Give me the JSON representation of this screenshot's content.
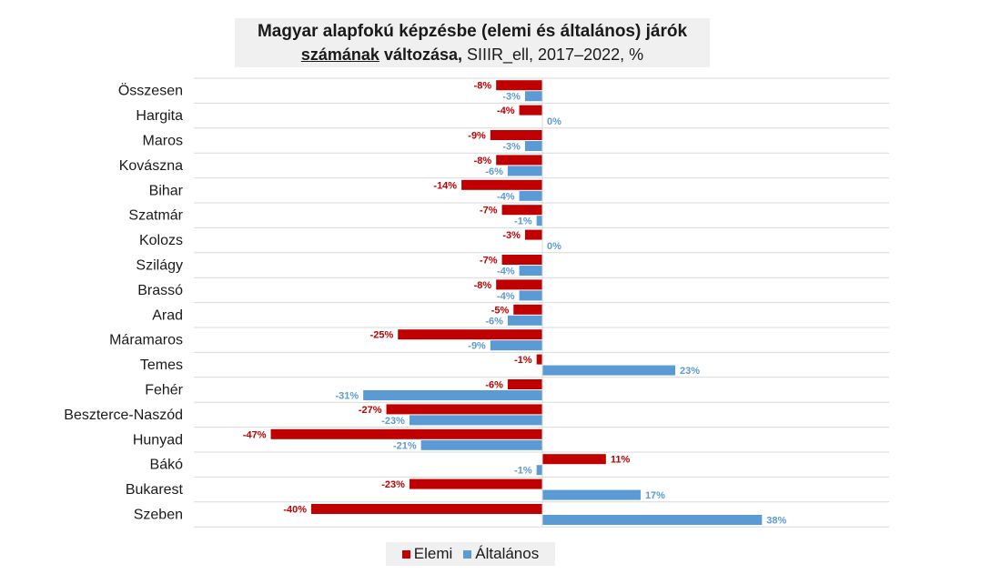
{
  "title": {
    "line1": "Magyar alapfokú képzésbe (elemi és általános) járók",
    "line2_underlined": "számának",
    "line2_bold": "változása,",
    "line2_rest": "SIIIR_ell, 2017–2022, %"
  },
  "chart_data": {
    "type": "bar",
    "orientation": "horizontal",
    "categories": [
      "Összesen",
      "Hargita",
      "Maros",
      "Kovászna",
      "Bihar",
      "Szatmár",
      "Kolozs",
      "Szilágy",
      "Brassó",
      "Arad",
      "Máramaros",
      "Temes",
      "Fehér",
      "Beszterce-Naszód",
      "Hunyad",
      "Bákó",
      "Bukarest",
      "Szeben"
    ],
    "series": [
      {
        "name": "Elemi",
        "color": "#c00000",
        "values": [
          -8,
          -4,
          -9,
          -8,
          -14,
          -7,
          -3,
          -7,
          -8,
          -5,
          -25,
          -1,
          -6,
          -27,
          -47,
          11,
          -23,
          -40
        ],
        "labels": [
          "-8%",
          "-4%",
          "-9%",
          "-8%",
          "-14%",
          "-7%",
          "-3%",
          "-7%",
          "-8%",
          "-5%",
          "-25%",
          "-1%",
          "-6%",
          "-27%",
          "-47%",
          "11%",
          "-23%",
          "-40%"
        ]
      },
      {
        "name": "Általános",
        "color": "#5b9bd5",
        "values": [
          -3,
          0,
          -3,
          -6,
          -4,
          -1,
          0,
          -4,
          -4,
          -6,
          -9,
          23,
          -31,
          -23,
          -21,
          -1,
          17,
          38
        ],
        "labels": [
          "-3%",
          "0%",
          "-3%",
          "-6%",
          "-4%",
          "-1%",
          "0%",
          "-4%",
          "-4%",
          "-6%",
          "-9%",
          "23%",
          "-31%",
          "-23%",
          "-21%",
          "-1%",
          "17%",
          "38%"
        ]
      }
    ],
    "grid": true,
    "legend_position": "bottom"
  },
  "legend": {
    "items": [
      {
        "label": "Elemi",
        "color": "#c00000"
      },
      {
        "label": "Általános",
        "color": "#5b9bd5"
      }
    ]
  }
}
